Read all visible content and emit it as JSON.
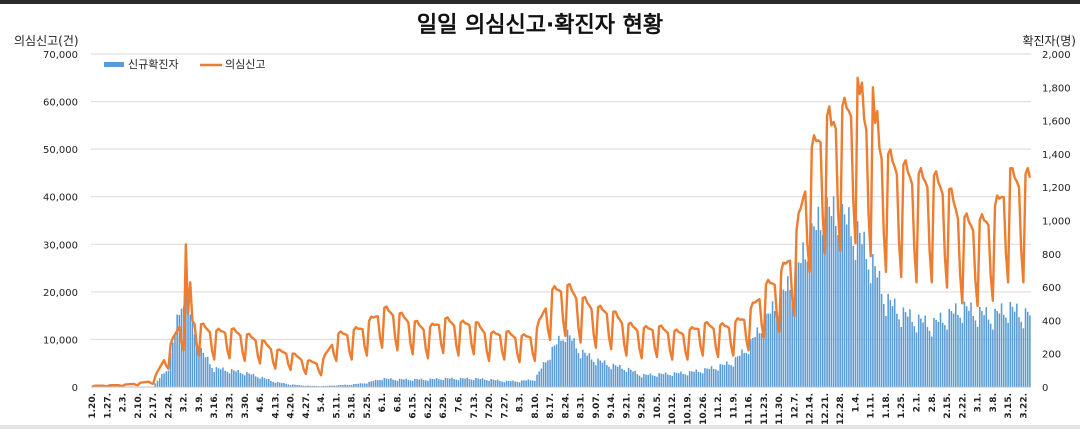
{
  "chart_data": {
    "type": "bar+line",
    "title": "일일 의심신고·확진자 현황",
    "ylabel_left": "의심신고(건)",
    "ylabel_right": "확진자(명)",
    "ylim_left": [
      0,
      70000
    ],
    "ylim_right": [
      0,
      2000
    ],
    "yticks_left": [
      "0",
      "10,000",
      "20,000",
      "30,000",
      "40,000",
      "50,000",
      "60,000",
      "70,000"
    ],
    "yticks_right": [
      "0",
      "200",
      "400",
      "600",
      "800",
      "1,000",
      "1,200",
      "1,400",
      "1,600",
      "1,800",
      "2,000"
    ],
    "grid": true,
    "legend_position": "top-left",
    "x_ticks": [
      "1.20.",
      "1.27.",
      "2.3.",
      "2.10.",
      "2.17.",
      "2.24.",
      "3.2.",
      "3.9.",
      "3.16.",
      "3.23.",
      "3.30.",
      "4.6.",
      "4.13.",
      "4.20.",
      "4.27.",
      "5.4.",
      "5.11.",
      "5.18.",
      "5.25.",
      "6.1.",
      "6.8.",
      "6.15.",
      "6.22.",
      "6.29.",
      "7.6.",
      "7.13.",
      "7.20.",
      "7.27.",
      "8.3.",
      "8.10.",
      "8.17.",
      "8.24.",
      "8.31.",
      "9.07.",
      "9.14.",
      "9.21.",
      "9.28.",
      "10.5.",
      "10.12.",
      "10.19.",
      "10.26.",
      "11.2.",
      "11.9.",
      "11.16.",
      "11.23.",
      "11.30.",
      "12.7.",
      "12.14.",
      "12.21.",
      "12.28.",
      "1.4.",
      "1.11.",
      "1.18.",
      "1.25.",
      "2.1.",
      "2.8.",
      "2.15.",
      "2.22.",
      "3.1.",
      "3.8.",
      "3.15.",
      "3.22."
    ],
    "days_per_tick": 7,
    "series": [
      {
        "name": "신규확진자",
        "kind": "bar",
        "axis": "right",
        "color": "#5b9bd5",
        "weekly_values": [
          1,
          1,
          2,
          1,
          3,
          120,
          590,
          230,
          110,
          100,
          85,
          60,
          30,
          15,
          8,
          5,
          10,
          15,
          25,
          50,
          45,
          45,
          45,
          50,
          50,
          50,
          45,
          35,
          35,
          45,
          200,
          330,
          210,
          160,
          130,
          110,
          70,
          75,
          80,
          85,
          100,
          120,
          150,
          240,
          380,
          520,
          650,
          870,
          1040,
          1010,
          930,
          760,
          520,
          440,
          400,
          370,
          420,
          470,
          440,
          420,
          470,
          430
        ]
      },
      {
        "name": "의심신고",
        "kind": "line",
        "axis": "left",
        "color": "#ed7d31",
        "weekly_values": [
          200,
          300,
          400,
          700,
          1200,
          7000,
          14000,
          12000,
          10500,
          11000,
          10000,
          9000,
          7000,
          6500,
          5000,
          4500,
          10000,
          10500,
          12000,
          15000,
          14000,
          12500,
          11000,
          13000,
          12000,
          12500,
          10000,
          10500,
          9500,
          10000,
          18000,
          19500,
          17000,
          15000,
          14500,
          12000,
          11000,
          11500,
          10500,
          10500,
          12000,
          11500,
          12000,
          14000,
          19000,
          21000,
          27000,
          44000,
          51000,
          52000,
          55000,
          50000,
          44000,
          42000,
          40000,
          40000,
          38000,
          32000,
          31000,
          33000,
          40000,
          40000
        ],
        "spikes": [
          {
            "tick": "3.2.",
            "values": [
              30000,
              22000
            ]
          },
          {
            "tick": "12.21.",
            "values": [
              57000,
              55000
            ]
          },
          {
            "tick": "12.28.",
            "values": [
              59000
            ]
          },
          {
            "tick": "1.4.",
            "values": [
              65000,
              64000
            ]
          },
          {
            "tick": "1.11.",
            "values": [
              63000,
              58000
            ]
          },
          {
            "tick": "3.15.",
            "values": [
              46000
            ]
          }
        ]
      }
    ]
  }
}
